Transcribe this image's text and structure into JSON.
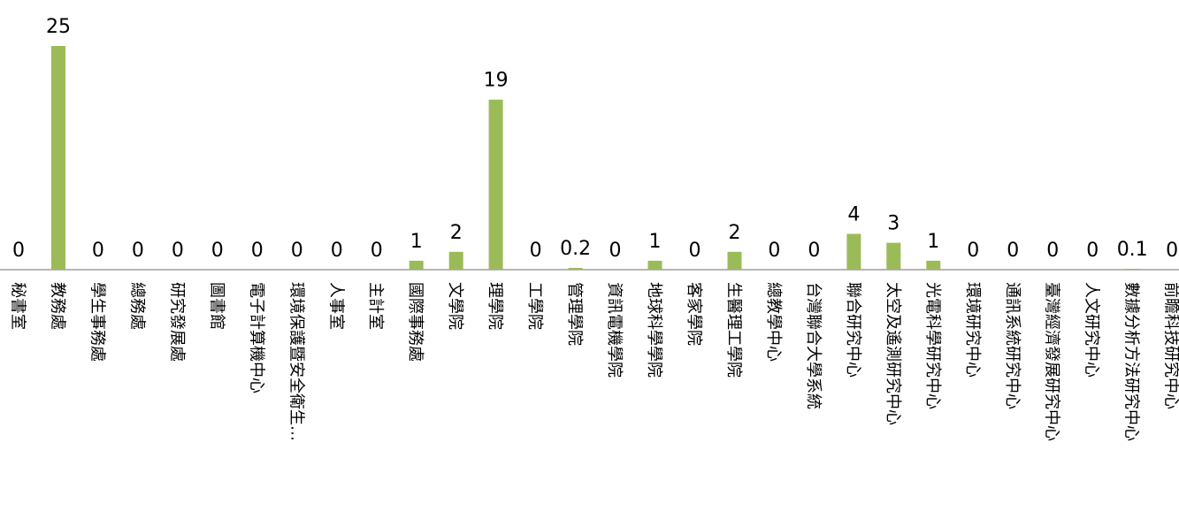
{
  "chart_data": {
    "type": "bar",
    "categories": [
      "秘書室",
      "教務處",
      "學生事務處",
      "總務處",
      "研究發展處",
      "圖書館",
      "電子計算機中心",
      "環境保護暨安全衛生…",
      "人事室",
      "主計室",
      "國際事務處",
      "文學院",
      "理學院",
      "工學院",
      "管理學院",
      "資訊電機學院",
      "地球科學學院",
      "客家學院",
      "生醫理工學院",
      "總教學中心",
      "台灣聯合大學系統",
      "聯合研究中心",
      "太空及遙測研究中心",
      "光電科學研究中心",
      "環境研究中心",
      "通訊系統研究中心",
      "臺灣經濟發展研究中心",
      "人文研究中心",
      "數據分析方法研究中心",
      "前瞻科技研究中心"
    ],
    "values": [
      0,
      25,
      0,
      0,
      0,
      0,
      0,
      0,
      0,
      0,
      1,
      2,
      19,
      0,
      0.2,
      0,
      1,
      0,
      2,
      0,
      0,
      4,
      3,
      1,
      0,
      0,
      0,
      0,
      0.1,
      0
    ],
    "value_labels": [
      "0",
      "25",
      "0",
      "0",
      "0",
      "0",
      "0",
      "0",
      "0",
      "0",
      "1",
      "2",
      "19",
      "0",
      "0.2",
      "0",
      "1",
      "0",
      "2",
      "0",
      "0",
      "4",
      "3",
      "1",
      "0",
      "0",
      "0",
      "0",
      "0.1",
      "0"
    ],
    "bar_color": "#9bbb59",
    "ylim": [
      0,
      25
    ],
    "grid": false,
    "legend": "none"
  }
}
